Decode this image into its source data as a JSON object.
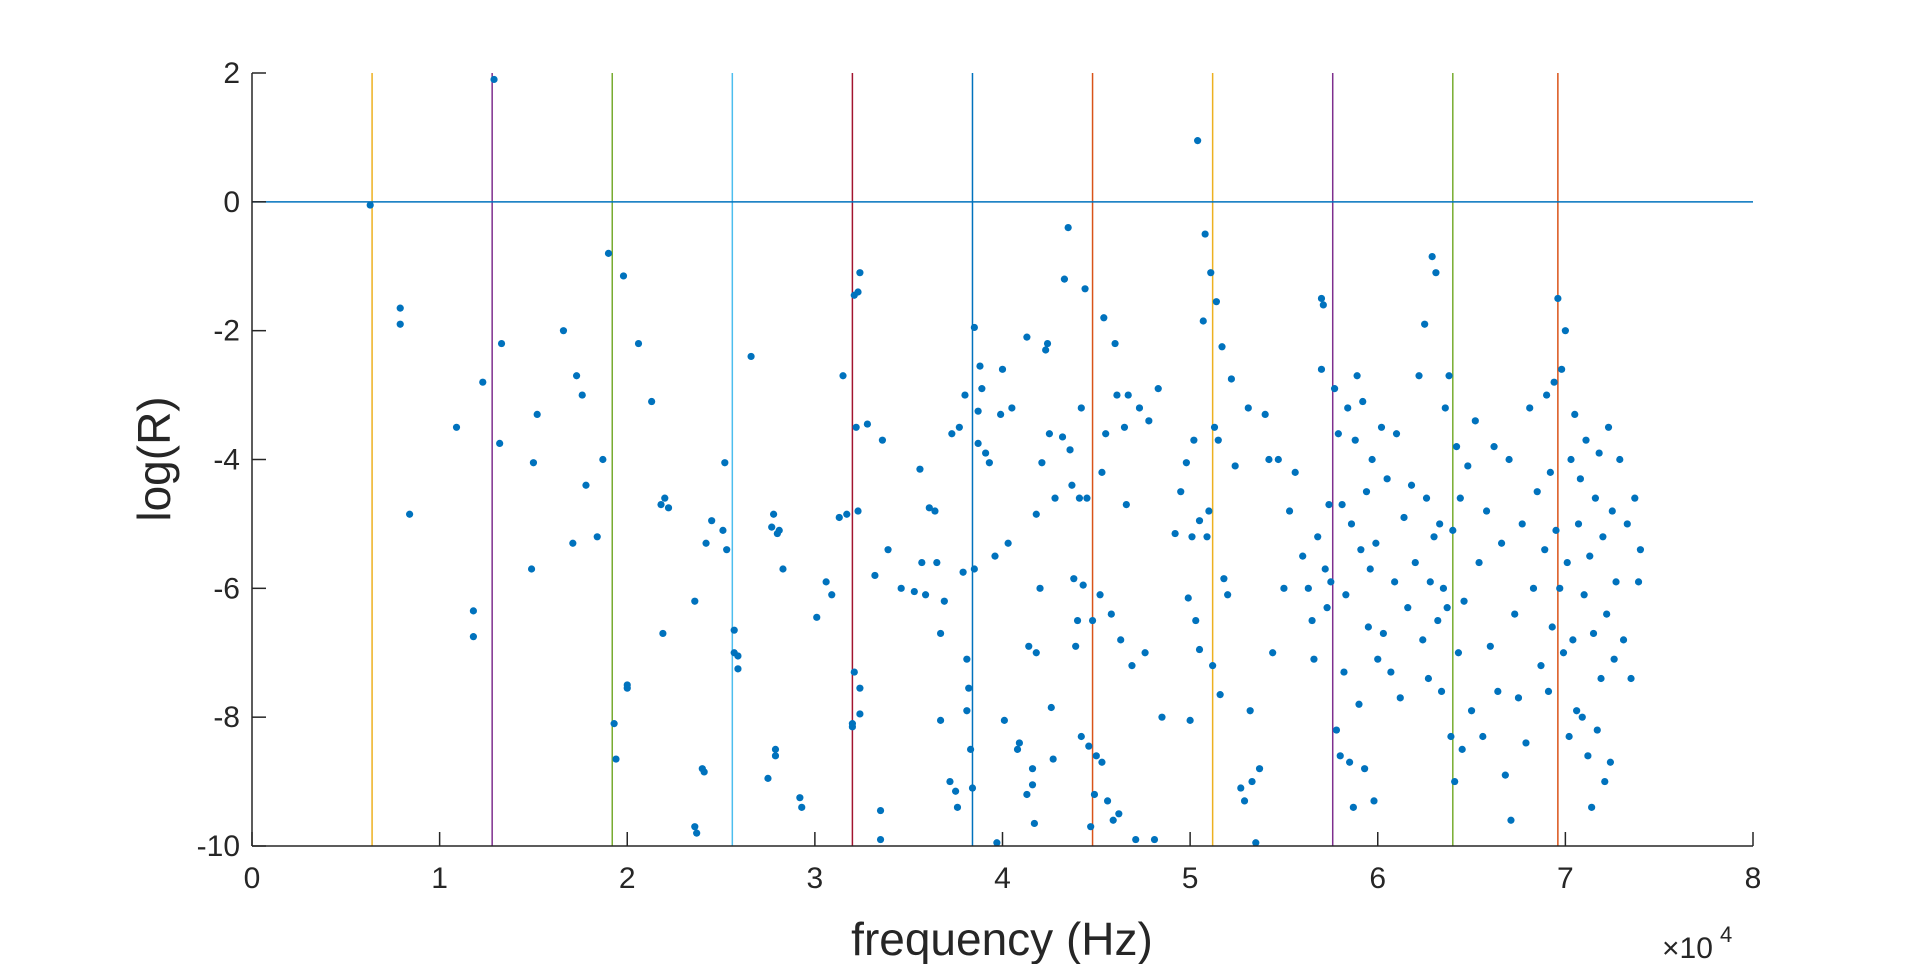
{
  "chart_data": {
    "type": "scatter",
    "title": "",
    "xlabel": "frequency (Hz)",
    "ylabel": "log(R)",
    "x_exponent_label": "×10",
    "x_exponent_power": "4",
    "x_multiplier": 10000,
    "xlim": [
      0,
      80000
    ],
    "ylim": [
      -10,
      2
    ],
    "x_tick_values": [
      0,
      10000,
      20000,
      30000,
      40000,
      50000,
      60000,
      70000,
      80000
    ],
    "x_tick_labels": [
      "0",
      "1",
      "2",
      "3",
      "4",
      "5",
      "6",
      "7",
      "8"
    ],
    "y_tick_values": [
      2,
      0,
      -2,
      -4,
      -6,
      -8,
      -10
    ],
    "y_tick_labels": [
      "2",
      "0",
      "-2",
      "-4",
      "-6",
      "-8",
      "-10"
    ],
    "grid": false,
    "legend": "none",
    "point_color": "#0072BD",
    "hline": {
      "y": 0,
      "color": "#0072BD"
    },
    "vlines": [
      {
        "x": 6400,
        "color": "#EDB120"
      },
      {
        "x": 12800,
        "color": "#7E2F8E"
      },
      {
        "x": 19200,
        "color": "#77AC30"
      },
      {
        "x": 25600,
        "color": "#4DBEEE"
      },
      {
        "x": 32000,
        "color": "#A2142F"
      },
      {
        "x": 38400,
        "color": "#0072BD"
      },
      {
        "x": 44800,
        "color": "#D95319"
      },
      {
        "x": 51200,
        "color": "#EDB120"
      },
      {
        "x": 57600,
        "color": "#7E2F8E"
      },
      {
        "x": 64000,
        "color": "#77AC30"
      },
      {
        "x": 69600,
        "color": "#D95319"
      }
    ],
    "points": [
      [
        6300,
        -0.05
      ],
      [
        12900,
        1.9
      ],
      [
        7900,
        -1.65
      ],
      [
        7900,
        -1.9
      ],
      [
        8400,
        -4.85
      ],
      [
        10900,
        -3.5
      ],
      [
        11800,
        -6.35
      ],
      [
        11800,
        -6.75
      ],
      [
        12300,
        -2.8
      ],
      [
        13200,
        -3.75
      ],
      [
        13300,
        -2.2
      ],
      [
        14900,
        -5.7
      ],
      [
        15000,
        -4.05
      ],
      [
        15200,
        -3.3
      ],
      [
        16600,
        -2.0
      ],
      [
        17100,
        -5.3
      ],
      [
        17300,
        -2.7
      ],
      [
        17600,
        -3.0
      ],
      [
        17800,
        -4.4
      ],
      [
        18400,
        -5.2
      ],
      [
        18700,
        -4.0
      ],
      [
        19000,
        -0.8
      ],
      [
        19300,
        -8.1
      ],
      [
        19400,
        -8.65
      ],
      [
        19800,
        -1.15
      ],
      [
        20000,
        -7.55
      ],
      [
        20000,
        -7.5
      ],
      [
        20600,
        -2.2
      ],
      [
        21300,
        -3.1
      ],
      [
        21800,
        -4.7
      ],
      [
        21900,
        -6.7
      ],
      [
        22000,
        -4.6
      ],
      [
        22200,
        -4.75
      ],
      [
        23600,
        -9.7
      ],
      [
        23600,
        -6.2
      ],
      [
        23700,
        -9.8
      ],
      [
        24000,
        -8.8
      ],
      [
        24100,
        -8.85
      ],
      [
        24200,
        -5.3
      ],
      [
        24500,
        -4.95
      ],
      [
        25100,
        -5.1
      ],
      [
        25200,
        -4.05
      ],
      [
        25300,
        -5.4
      ],
      [
        25700,
        -6.65
      ],
      [
        25700,
        -7.0
      ],
      [
        25900,
        -7.05
      ],
      [
        25900,
        -7.25
      ],
      [
        26600,
        -2.4
      ],
      [
        27500,
        -8.95
      ],
      [
        27700,
        -5.05
      ],
      [
        27800,
        -4.85
      ],
      [
        27900,
        -8.5
      ],
      [
        27900,
        -8.6
      ],
      [
        28000,
        -5.15
      ],
      [
        28100,
        -5.1
      ],
      [
        28300,
        -5.7
      ],
      [
        29200,
        -9.25
      ],
      [
        29300,
        -9.4
      ],
      [
        30100,
        -6.45
      ],
      [
        30600,
        -5.9
      ],
      [
        30900,
        -6.1
      ],
      [
        31300,
        -4.9
      ],
      [
        31500,
        -2.7
      ],
      [
        31700,
        -4.85
      ],
      [
        32000,
        -8.15
      ],
      [
        32000,
        -8.1
      ],
      [
        32100,
        -1.45
      ],
      [
        32100,
        -7.3
      ],
      [
        32200,
        -3.5
      ],
      [
        32300,
        -1.4
      ],
      [
        32300,
        -4.8
      ],
      [
        32400,
        -1.1
      ],
      [
        32400,
        -7.95
      ],
      [
        32400,
        -7.55
      ],
      [
        32800,
        -3.45
      ],
      [
        33200,
        -5.8
      ],
      [
        33500,
        -9.45
      ],
      [
        33500,
        -9.9
      ],
      [
        33600,
        -3.7
      ],
      [
        33900,
        -5.4
      ],
      [
        34600,
        -6.0
      ],
      [
        35300,
        -6.05
      ],
      [
        35600,
        -4.15
      ],
      [
        35700,
        -5.6
      ],
      [
        35900,
        -6.1
      ],
      [
        36100,
        -4.75
      ],
      [
        36400,
        -4.8
      ],
      [
        36500,
        -5.6
      ],
      [
        36700,
        -6.7
      ],
      [
        36700,
        -8.05
      ],
      [
        36900,
        -6.2
      ],
      [
        37200,
        -9.0
      ],
      [
        37300,
        -3.6
      ],
      [
        37500,
        -9.15
      ],
      [
        37600,
        -9.4
      ],
      [
        37700,
        -3.5
      ],
      [
        37900,
        -5.75
      ],
      [
        38000,
        -3.0
      ],
      [
        38100,
        -7.1
      ],
      [
        38100,
        -7.9
      ],
      [
        38200,
        -7.55
      ],
      [
        38300,
        -8.5
      ],
      [
        38400,
        -9.1
      ],
      [
        38500,
        -1.95
      ],
      [
        38500,
        -5.7
      ],
      [
        38700,
        -3.25
      ],
      [
        38700,
        -3.75
      ],
      [
        38800,
        -2.55
      ],
      [
        38900,
        -2.9
      ],
      [
        39100,
        -3.9
      ],
      [
        39300,
        -4.05
      ],
      [
        39600,
        -5.5
      ],
      [
        39700,
        -9.95
      ],
      [
        39900,
        -3.3
      ],
      [
        40000,
        -2.6
      ],
      [
        40100,
        -8.05
      ],
      [
        40300,
        -5.3
      ],
      [
        40500,
        -3.2
      ],
      [
        40800,
        -8.5
      ],
      [
        40900,
        -8.4
      ],
      [
        41300,
        -9.2
      ],
      [
        41300,
        -2.1
      ],
      [
        41400,
        -6.9
      ],
      [
        41600,
        -8.8
      ],
      [
        41600,
        -9.05
      ],
      [
        41700,
        -9.65
      ],
      [
        41800,
        -4.85
      ],
      [
        41800,
        -7.0
      ],
      [
        42000,
        -6.0
      ],
      [
        42100,
        -4.05
      ],
      [
        42300,
        -2.3
      ],
      [
        42400,
        -2.2
      ],
      [
        42500,
        -3.6
      ],
      [
        42600,
        -7.85
      ],
      [
        42700,
        -8.65
      ],
      [
        42800,
        -4.6
      ],
      [
        43200,
        -3.65
      ],
      [
        43300,
        -1.2
      ],
      [
        43500,
        -0.4
      ],
      [
        43600,
        -3.85
      ],
      [
        43700,
        -4.4
      ],
      [
        43800,
        -5.85
      ],
      [
        43900,
        -6.9
      ],
      [
        44000,
        -6.5
      ],
      [
        44100,
        -4.6
      ],
      [
        44200,
        -3.2
      ],
      [
        44200,
        -8.3
      ],
      [
        44300,
        -5.95
      ],
      [
        44400,
        -1.35
      ],
      [
        44500,
        -4.6
      ],
      [
        44600,
        -8.45
      ],
      [
        44700,
        -9.7
      ],
      [
        44800,
        -6.5
      ],
      [
        44900,
        -9.2
      ],
      [
        45000,
        -8.6
      ],
      [
        45200,
        -6.1
      ],
      [
        45300,
        -4.2
      ],
      [
        45300,
        -8.7
      ],
      [
        45400,
        -1.8
      ],
      [
        45500,
        -3.6
      ],
      [
        45600,
        -9.3
      ],
      [
        45800,
        -6.4
      ],
      [
        45900,
        -9.6
      ],
      [
        46000,
        -2.2
      ],
      [
        46100,
        -3.0
      ],
      [
        46200,
        -9.5
      ],
      [
        46300,
        -6.8
      ],
      [
        46500,
        -3.5
      ],
      [
        46600,
        -4.7
      ],
      [
        46700,
        -3.0
      ],
      [
        46900,
        -7.2
      ],
      [
        47100,
        -9.9
      ],
      [
        47300,
        -3.2
      ],
      [
        47600,
        -7.0
      ],
      [
        47800,
        -3.4
      ],
      [
        48100,
        -9.9
      ],
      [
        48300,
        -2.9
      ],
      [
        48500,
        -8.0
      ],
      [
        49200,
        -5.15
      ],
      [
        49500,
        -4.5
      ],
      [
        49800,
        -4.05
      ],
      [
        49900,
        -6.15
      ],
      [
        50000,
        -8.05
      ],
      [
        50100,
        -5.2
      ],
      [
        50200,
        -3.7
      ],
      [
        50300,
        -6.5
      ],
      [
        50400,
        0.95
      ],
      [
        50500,
        -4.95
      ],
      [
        50500,
        -6.95
      ],
      [
        50700,
        -1.85
      ],
      [
        50800,
        -0.5
      ],
      [
        50900,
        -5.2
      ],
      [
        51000,
        -4.8
      ],
      [
        51100,
        -1.1
      ],
      [
        51200,
        -7.2
      ],
      [
        51300,
        -3.5
      ],
      [
        51400,
        -1.55
      ],
      [
        51500,
        -3.7
      ],
      [
        51600,
        -7.65
      ],
      [
        51700,
        -2.25
      ],
      [
        51800,
        -5.85
      ],
      [
        52000,
        -6.1
      ],
      [
        52200,
        -2.75
      ],
      [
        52400,
        -4.1
      ],
      [
        52700,
        -9.1
      ],
      [
        52900,
        -9.3
      ],
      [
        53100,
        -3.2
      ],
      [
        53200,
        -7.9
      ],
      [
        53300,
        -9.0
      ],
      [
        53500,
        -9.95
      ],
      [
        53700,
        -8.8
      ],
      [
        54000,
        -3.3
      ],
      [
        54200,
        -4.0
      ],
      [
        54400,
        -7.0
      ],
      [
        54700,
        -4.0
      ],
      [
        55000,
        -6.0
      ],
      [
        55300,
        -4.8
      ],
      [
        55600,
        -4.2
      ],
      [
        56000,
        -5.5
      ],
      [
        56300,
        -6.0
      ],
      [
        56500,
        -6.5
      ],
      [
        56600,
        -7.1
      ],
      [
        56800,
        -5.2
      ],
      [
        57000,
        -1.5
      ],
      [
        57000,
        -2.6
      ],
      [
        57100,
        -1.6
      ],
      [
        57200,
        -5.7
      ],
      [
        57300,
        -6.3
      ],
      [
        57400,
        -4.7
      ],
      [
        57500,
        -5.9
      ],
      [
        57700,
        -2.9
      ],
      [
        57800,
        -8.2
      ],
      [
        57900,
        -3.6
      ],
      [
        58000,
        -8.6
      ],
      [
        58100,
        -4.7
      ],
      [
        58200,
        -7.3
      ],
      [
        58300,
        -6.1
      ],
      [
        58400,
        -3.2
      ],
      [
        58500,
        -8.7
      ],
      [
        58600,
        -5.0
      ],
      [
        58700,
        -9.4
      ],
      [
        58800,
        -3.7
      ],
      [
        58900,
        -2.7
      ],
      [
        59000,
        -7.8
      ],
      [
        59100,
        -5.4
      ],
      [
        59200,
        -3.1
      ],
      [
        59300,
        -8.8
      ],
      [
        59400,
        -4.5
      ],
      [
        59500,
        -6.6
      ],
      [
        59600,
        -5.7
      ],
      [
        59700,
        -4.0
      ],
      [
        59800,
        -9.3
      ],
      [
        59900,
        -5.3
      ],
      [
        60000,
        -7.1
      ],
      [
        60200,
        -3.5
      ],
      [
        60300,
        -6.7
      ],
      [
        60500,
        -4.3
      ],
      [
        60700,
        -7.3
      ],
      [
        60900,
        -5.9
      ],
      [
        61000,
        -3.6
      ],
      [
        61200,
        -7.7
      ],
      [
        61400,
        -4.9
      ],
      [
        61600,
        -6.3
      ],
      [
        61800,
        -4.4
      ],
      [
        62000,
        -5.6
      ],
      [
        62200,
        -2.7
      ],
      [
        62400,
        -6.8
      ],
      [
        62500,
        -1.9
      ],
      [
        62600,
        -4.6
      ],
      [
        62700,
        -7.4
      ],
      [
        62800,
        -5.9
      ],
      [
        62900,
        -0.85
      ],
      [
        63000,
        -5.2
      ],
      [
        63100,
        -1.1
      ],
      [
        63200,
        -6.5
      ],
      [
        63300,
        -5.0
      ],
      [
        63400,
        -7.6
      ],
      [
        63500,
        -6.0
      ],
      [
        63600,
        -3.2
      ],
      [
        63700,
        -6.3
      ],
      [
        63800,
        -2.7
      ],
      [
        63900,
        -8.3
      ],
      [
        64000,
        -5.1
      ],
      [
        64100,
        -9.0
      ],
      [
        64200,
        -3.8
      ],
      [
        64300,
        -7.0
      ],
      [
        64400,
        -4.6
      ],
      [
        64500,
        -8.5
      ],
      [
        64600,
        -6.2
      ],
      [
        64800,
        -4.1
      ],
      [
        65000,
        -7.9
      ],
      [
        65200,
        -3.4
      ],
      [
        65400,
        -5.6
      ],
      [
        65600,
        -8.3
      ],
      [
        65800,
        -4.8
      ],
      [
        66000,
        -6.9
      ],
      [
        66200,
        -3.8
      ],
      [
        66400,
        -7.6
      ],
      [
        66600,
        -5.3
      ],
      [
        66800,
        -8.9
      ],
      [
        67000,
        -4.0
      ],
      [
        67100,
        -9.6
      ],
      [
        67300,
        -6.4
      ],
      [
        67500,
        -7.7
      ],
      [
        67700,
        -5.0
      ],
      [
        67900,
        -8.4
      ],
      [
        68100,
        -3.2
      ],
      [
        68300,
        -6.0
      ],
      [
        68500,
        -4.5
      ],
      [
        68700,
        -7.2
      ],
      [
        68900,
        -5.4
      ],
      [
        69000,
        -3.0
      ],
      [
        69100,
        -7.6
      ],
      [
        69200,
        -4.2
      ],
      [
        69300,
        -6.6
      ],
      [
        69400,
        -2.8
      ],
      [
        69500,
        -5.1
      ],
      [
        69600,
        -1.5
      ],
      [
        69700,
        -6.0
      ],
      [
        69800,
        -2.6
      ],
      [
        69900,
        -7.0
      ],
      [
        70000,
        -2.0
      ],
      [
        70100,
        -5.6
      ],
      [
        70200,
        -8.3
      ],
      [
        70300,
        -4.0
      ],
      [
        70400,
        -6.8
      ],
      [
        70500,
        -3.3
      ],
      [
        70600,
        -7.9
      ],
      [
        70700,
        -5.0
      ],
      [
        70800,
        -4.3
      ],
      [
        70900,
        -8.0
      ],
      [
        71000,
        -6.1
      ],
      [
        71100,
        -3.7
      ],
      [
        71200,
        -8.6
      ],
      [
        71300,
        -5.5
      ],
      [
        71400,
        -9.4
      ],
      [
        71500,
        -6.7
      ],
      [
        71600,
        -4.6
      ],
      [
        71700,
        -8.2
      ],
      [
        71800,
        -3.9
      ],
      [
        71900,
        -7.4
      ],
      [
        72000,
        -5.2
      ],
      [
        72100,
        -9.0
      ],
      [
        72200,
        -6.4
      ],
      [
        72300,
        -3.5
      ],
      [
        72400,
        -8.7
      ],
      [
        72500,
        -4.8
      ],
      [
        72600,
        -7.1
      ],
      [
        72700,
        -5.9
      ],
      [
        72900,
        -4.0
      ],
      [
        73100,
        -6.8
      ],
      [
        73300,
        -5.0
      ],
      [
        73500,
        -7.4
      ],
      [
        73700,
        -4.6
      ],
      [
        73900,
        -5.9
      ],
      [
        74000,
        -5.4
      ]
    ]
  }
}
